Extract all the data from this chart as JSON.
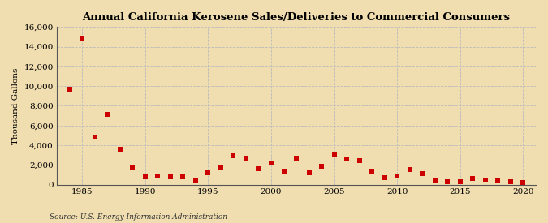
{
  "title": "Annual California Kerosene Sales/Deliveries to Commercial Consumers",
  "ylabel": "Thousand Gallons",
  "source": "Source: U.S. Energy Information Administration",
  "background_color": "#f0ddb0",
  "plot_background_color": "#f0ddb0",
  "marker_color": "#cc0000",
  "xlim": [
    1983,
    2021
  ],
  "ylim": [
    0,
    16000
  ],
  "yticks": [
    0,
    2000,
    4000,
    6000,
    8000,
    10000,
    12000,
    14000,
    16000
  ],
  "xticks": [
    1985,
    1990,
    1995,
    2000,
    2005,
    2010,
    2015,
    2020
  ],
  "data": {
    "years": [
      1984,
      1985,
      1986,
      1987,
      1988,
      1989,
      1990,
      1991,
      1992,
      1993,
      1994,
      1995,
      1996,
      1997,
      1998,
      1999,
      2000,
      2001,
      2002,
      2003,
      2004,
      2005,
      2006,
      2007,
      2008,
      2009,
      2010,
      2011,
      2012,
      2013,
      2014,
      2015,
      2016,
      2017,
      2018,
      2019,
      2020
    ],
    "values": [
      9700,
      14800,
      4800,
      7100,
      3600,
      1700,
      800,
      900,
      800,
      800,
      400,
      1200,
      1700,
      2900,
      2700,
      1600,
      2200,
      1300,
      2700,
      1200,
      1900,
      3000,
      2600,
      2400,
      1400,
      700,
      900,
      1500,
      1100,
      400,
      300,
      300,
      600,
      500,
      400,
      300,
      200
    ]
  }
}
